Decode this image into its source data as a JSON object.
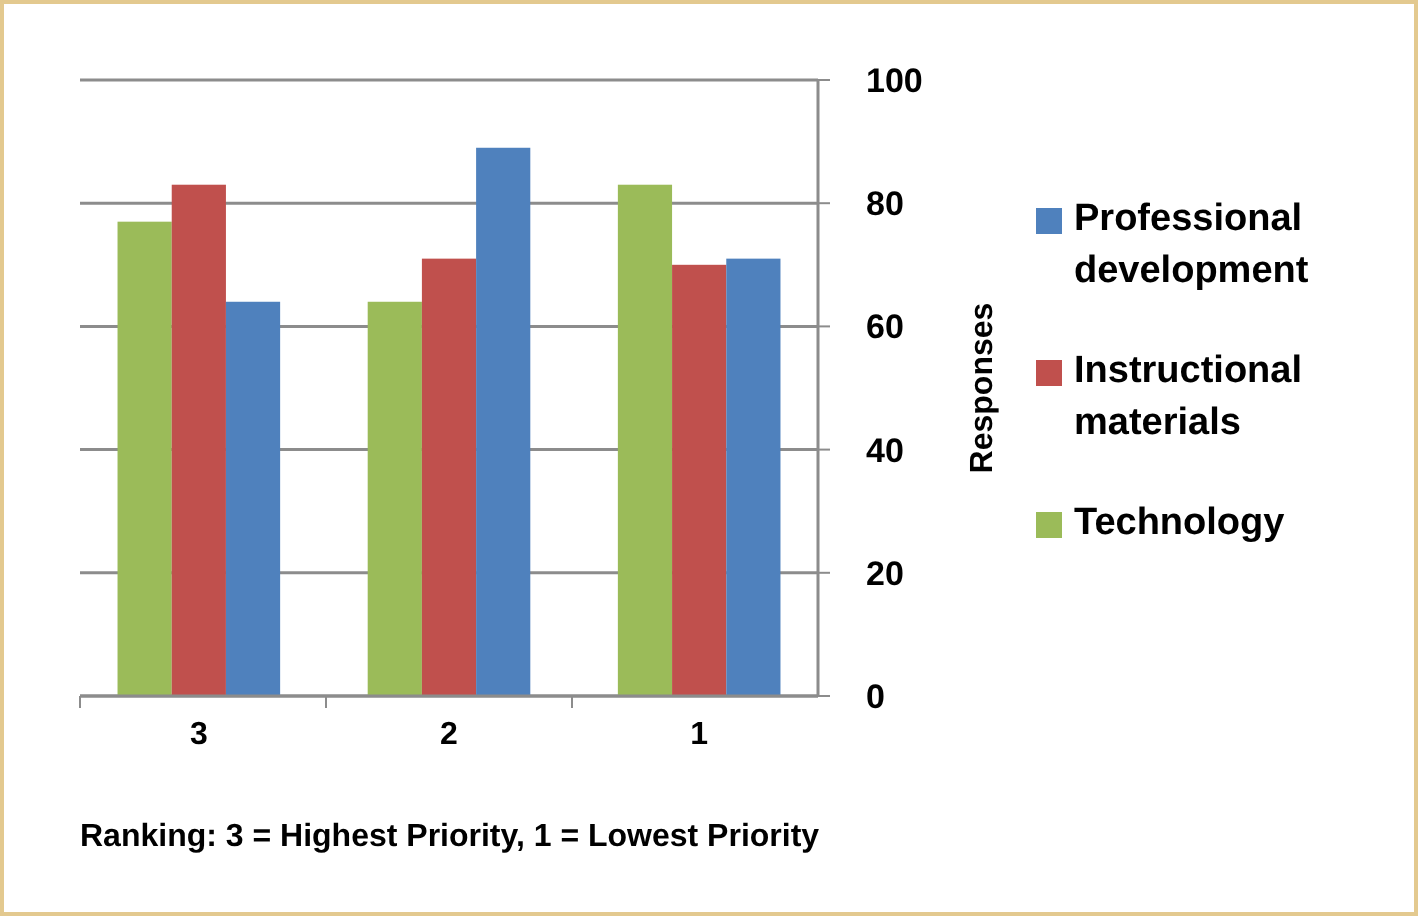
{
  "chart_data": {
    "type": "bar",
    "xlabel": "Ranking: 3 = Highest Priority, 1 = Lowest Priority",
    "ylabel": "Responses",
    "categories": [
      "3",
      "2",
      "1"
    ],
    "series": [
      {
        "name": "Technology",
        "color": "#9bbb59",
        "values": [
          77,
          64,
          83
        ]
      },
      {
        "name": "Instructional materials",
        "color": "#c0504d",
        "values": [
          83,
          71,
          70
        ]
      },
      {
        "name": "Professional development",
        "color": "#4f81bd",
        "values": [
          64,
          89,
          71
        ]
      }
    ],
    "ylim": [
      0,
      100
    ],
    "yticks": [
      0,
      20,
      40,
      60,
      80,
      100
    ],
    "grid": "y",
    "legend": "right"
  }
}
